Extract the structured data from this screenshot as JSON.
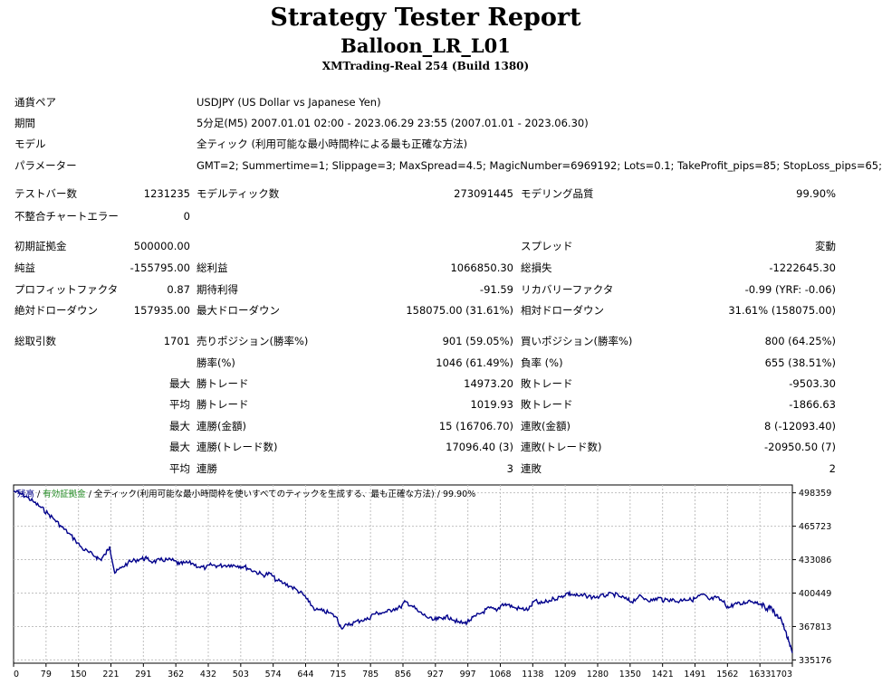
{
  "header": {
    "title": "Strategy Tester Report",
    "subtitle": "Balloon_LR_L01",
    "server": "XMTrading-Real 254 (Build 1380)"
  },
  "info": {
    "pair_label": "通貨ペア",
    "pair_value": "USDJPY (US Dollar vs Japanese Yen)",
    "period_label": "期間",
    "period_value": "5分足(M5) 2007.01.01 02:00 - 2023.06.29 23:55 (2007.01.01 - 2023.06.30)",
    "model_label": "モデル",
    "model_value": "全ティック (利用可能な最小時間枠による最も正確な方法)",
    "params_label": "パラメーター",
    "params_value": "GMT=2; Summertime=1; Slippage=3; MaxSpread=4.5; MagicNumber=6969192; Lots=0.1; TakeProfit_pips=85; StopLoss_pips=65;"
  },
  "stats": {
    "bars_label": "テストバー数",
    "bars_value": "1231235",
    "ticks_label": "モデルティック数",
    "ticks_value": "273091445",
    "quality_label": "モデリング品質",
    "quality_value": "99.90%",
    "errors_label": "不整合チャートエラー",
    "errors_value": "0",
    "deposit_label": "初期証拠金",
    "deposit_value": "500000.00",
    "spread_label": "スプレッド",
    "spread_value": "変動",
    "net_label": "純益",
    "net_value": "-155795.00",
    "gross_profit_label": "総利益",
    "gross_profit_value": "1066850.30",
    "gross_loss_label": "総損失",
    "gross_loss_value": "-1222645.30",
    "pf_label": "プロフィットファクタ",
    "pf_value": "0.87",
    "expected_label": "期待利得",
    "expected_value": "-91.59",
    "recovery_label": "リカバリーファクタ",
    "recovery_value": "-0.99 (YRF: -0.06)",
    "abs_dd_label": "絶対ドローダウン",
    "abs_dd_value": "157935.00",
    "max_dd_label": "最大ドローダウン",
    "max_dd_value": "158075.00 (31.61%)",
    "rel_dd_label": "相対ドローダウン",
    "rel_dd_value": "31.61% (158075.00)",
    "trades_label": "総取引数",
    "trades_value": "1701",
    "short_label": "売りポジション(勝率%)",
    "short_value": "901 (59.05%)",
    "long_label": "買いポジション(勝率%)",
    "long_value": "800 (64.25%)",
    "winrate_label": "勝率(%)",
    "winrate_value": "1046 (61.49%)",
    "lossrate_label": "負率 (%)",
    "lossrate_value": "655 (38.51%)",
    "max_label": "最大",
    "avg_label": "平均",
    "largest_win_label": "勝トレード",
    "largest_win_value": "14973.20",
    "largest_loss_label": "敗トレード",
    "largest_loss_value": "-9503.30",
    "avg_win_label": "勝トレード",
    "avg_win_value": "1019.93",
    "avg_loss_label": "敗トレード",
    "avg_loss_value": "-1866.63",
    "max_consec_wins_label": "連勝(金額)",
    "max_consec_wins_value": "15 (16706.70)",
    "max_consec_losses_label": "連敗(金額)",
    "max_consec_losses_value": "8 (-12093.40)",
    "max_consec_profit_label": "連勝(トレード数)",
    "max_consec_profit_value": "17096.40 (3)",
    "max_consec_loss_label": "連敗(トレード数)",
    "max_consec_loss_value": "-20950.50 (7)",
    "avg_consec_wins_label": "連勝",
    "avg_consec_wins_value": "3",
    "avg_consec_losses_label": "連敗",
    "avg_consec_losses_value": "2"
  },
  "chart_legend": {
    "balance": "残高",
    "sep1": " / ",
    "equity": "有効証拠金",
    "sep2": " / ",
    "rest": "全ティック(利用可能な最小時間枠を使いすべてのティックを生成する、最も正確な方法) / 99.90%"
  },
  "chart_data": {
    "type": "line",
    "ylim": [
      332000,
      506000
    ],
    "xlim": [
      0,
      1701
    ],
    "x_ticks": [
      "0",
      "79",
      "150",
      "221",
      "291",
      "362",
      "432",
      "503",
      "574",
      "644",
      "715",
      "785",
      "856",
      "927",
      "997",
      "1068",
      "1138",
      "1209",
      "1280",
      "1350",
      "1421",
      "1491",
      "1562",
      "1633",
      "1703"
    ],
    "y_ticks": [
      498359,
      465723,
      433086,
      400449,
      367813,
      335176
    ],
    "colors": {
      "balance": "#00008b",
      "grid": "#c0c0c0"
    },
    "series": [
      {
        "x": [
          0,
          15,
          30,
          45,
          60,
          75,
          90,
          105,
          120,
          135,
          150,
          165,
          180,
          190,
          200,
          210,
          221,
          235,
          250,
          265,
          280,
          291,
          305,
          320,
          335,
          350,
          362,
          375,
          390,
          405,
          420,
          432,
          445,
          460,
          475,
          490,
          503,
          515,
          530,
          545,
          560,
          574,
          590,
          605,
          620,
          635,
          644,
          660,
          675,
          690,
          705,
          715,
          730,
          745,
          760,
          775,
          785,
          800,
          815,
          830,
          845,
          856,
          870,
          885,
          900,
          915,
          927,
          940,
          955,
          970,
          985,
          997,
          1010,
          1025,
          1040,
          1055,
          1068,
          1080,
          1095,
          1110,
          1125,
          1138,
          1150,
          1165,
          1180,
          1195,
          1209,
          1220,
          1235,
          1250,
          1265,
          1280,
          1295,
          1310,
          1325,
          1340,
          1350,
          1365,
          1380,
          1395,
          1410,
          1421,
          1435,
          1450,
          1465,
          1480,
          1491,
          1505,
          1520,
          1535,
          1550,
          1562,
          1575,
          1590,
          1605,
          1620,
          1633,
          1645,
          1655,
          1665,
          1675,
          1685,
          1693,
          1701
        ],
        "y": [
          500000,
          497500,
          494000,
          489000,
          484000,
          478000,
          472000,
          465000,
          459000,
          452000,
          444000,
          440000,
          436000,
          433000,
          438000,
          446000,
          420000,
          425000,
          430000,
          432500,
          434000,
          434000,
          431000,
          432500,
          433000,
          432000,
          428500,
          430000,
          429500,
          426000,
          425000,
          428000,
          427000,
          427500,
          428000,
          427000,
          426500,
          424000,
          421000,
          418000,
          419500,
          413000,
          410000,
          407000,
          403000,
          398000,
          392000,
          384000,
          383000,
          381000,
          377000,
          367000,
          369000,
          372000,
          374000,
          375000,
          380000,
          381000,
          382000,
          385000,
          386500,
          392000,
          388000,
          382000,
          378000,
          374000,
          375000,
          377000,
          376500,
          372000,
          371000,
          374000,
          378000,
          382000,
          386000,
          383000,
          390000,
          389000,
          386000,
          385000,
          384500,
          393000,
          390000,
          392000,
          395000,
          396500,
          400500,
          399000,
          397500,
          398000,
          396500,
          397000,
          398500,
          399500,
          397000,
          394000,
          392000,
          397000,
          395000,
          393000,
          396000,
          393000,
          394500,
          392000,
          395000,
          393500,
          395500,
          399000,
          394000,
          396000,
          392000,
          386000,
          390000,
          389500,
          393000,
          392000,
          390000,
          385000,
          387000,
          378000,
          377000,
          364000,
          353000,
          342000
        ]
      }
    ]
  }
}
